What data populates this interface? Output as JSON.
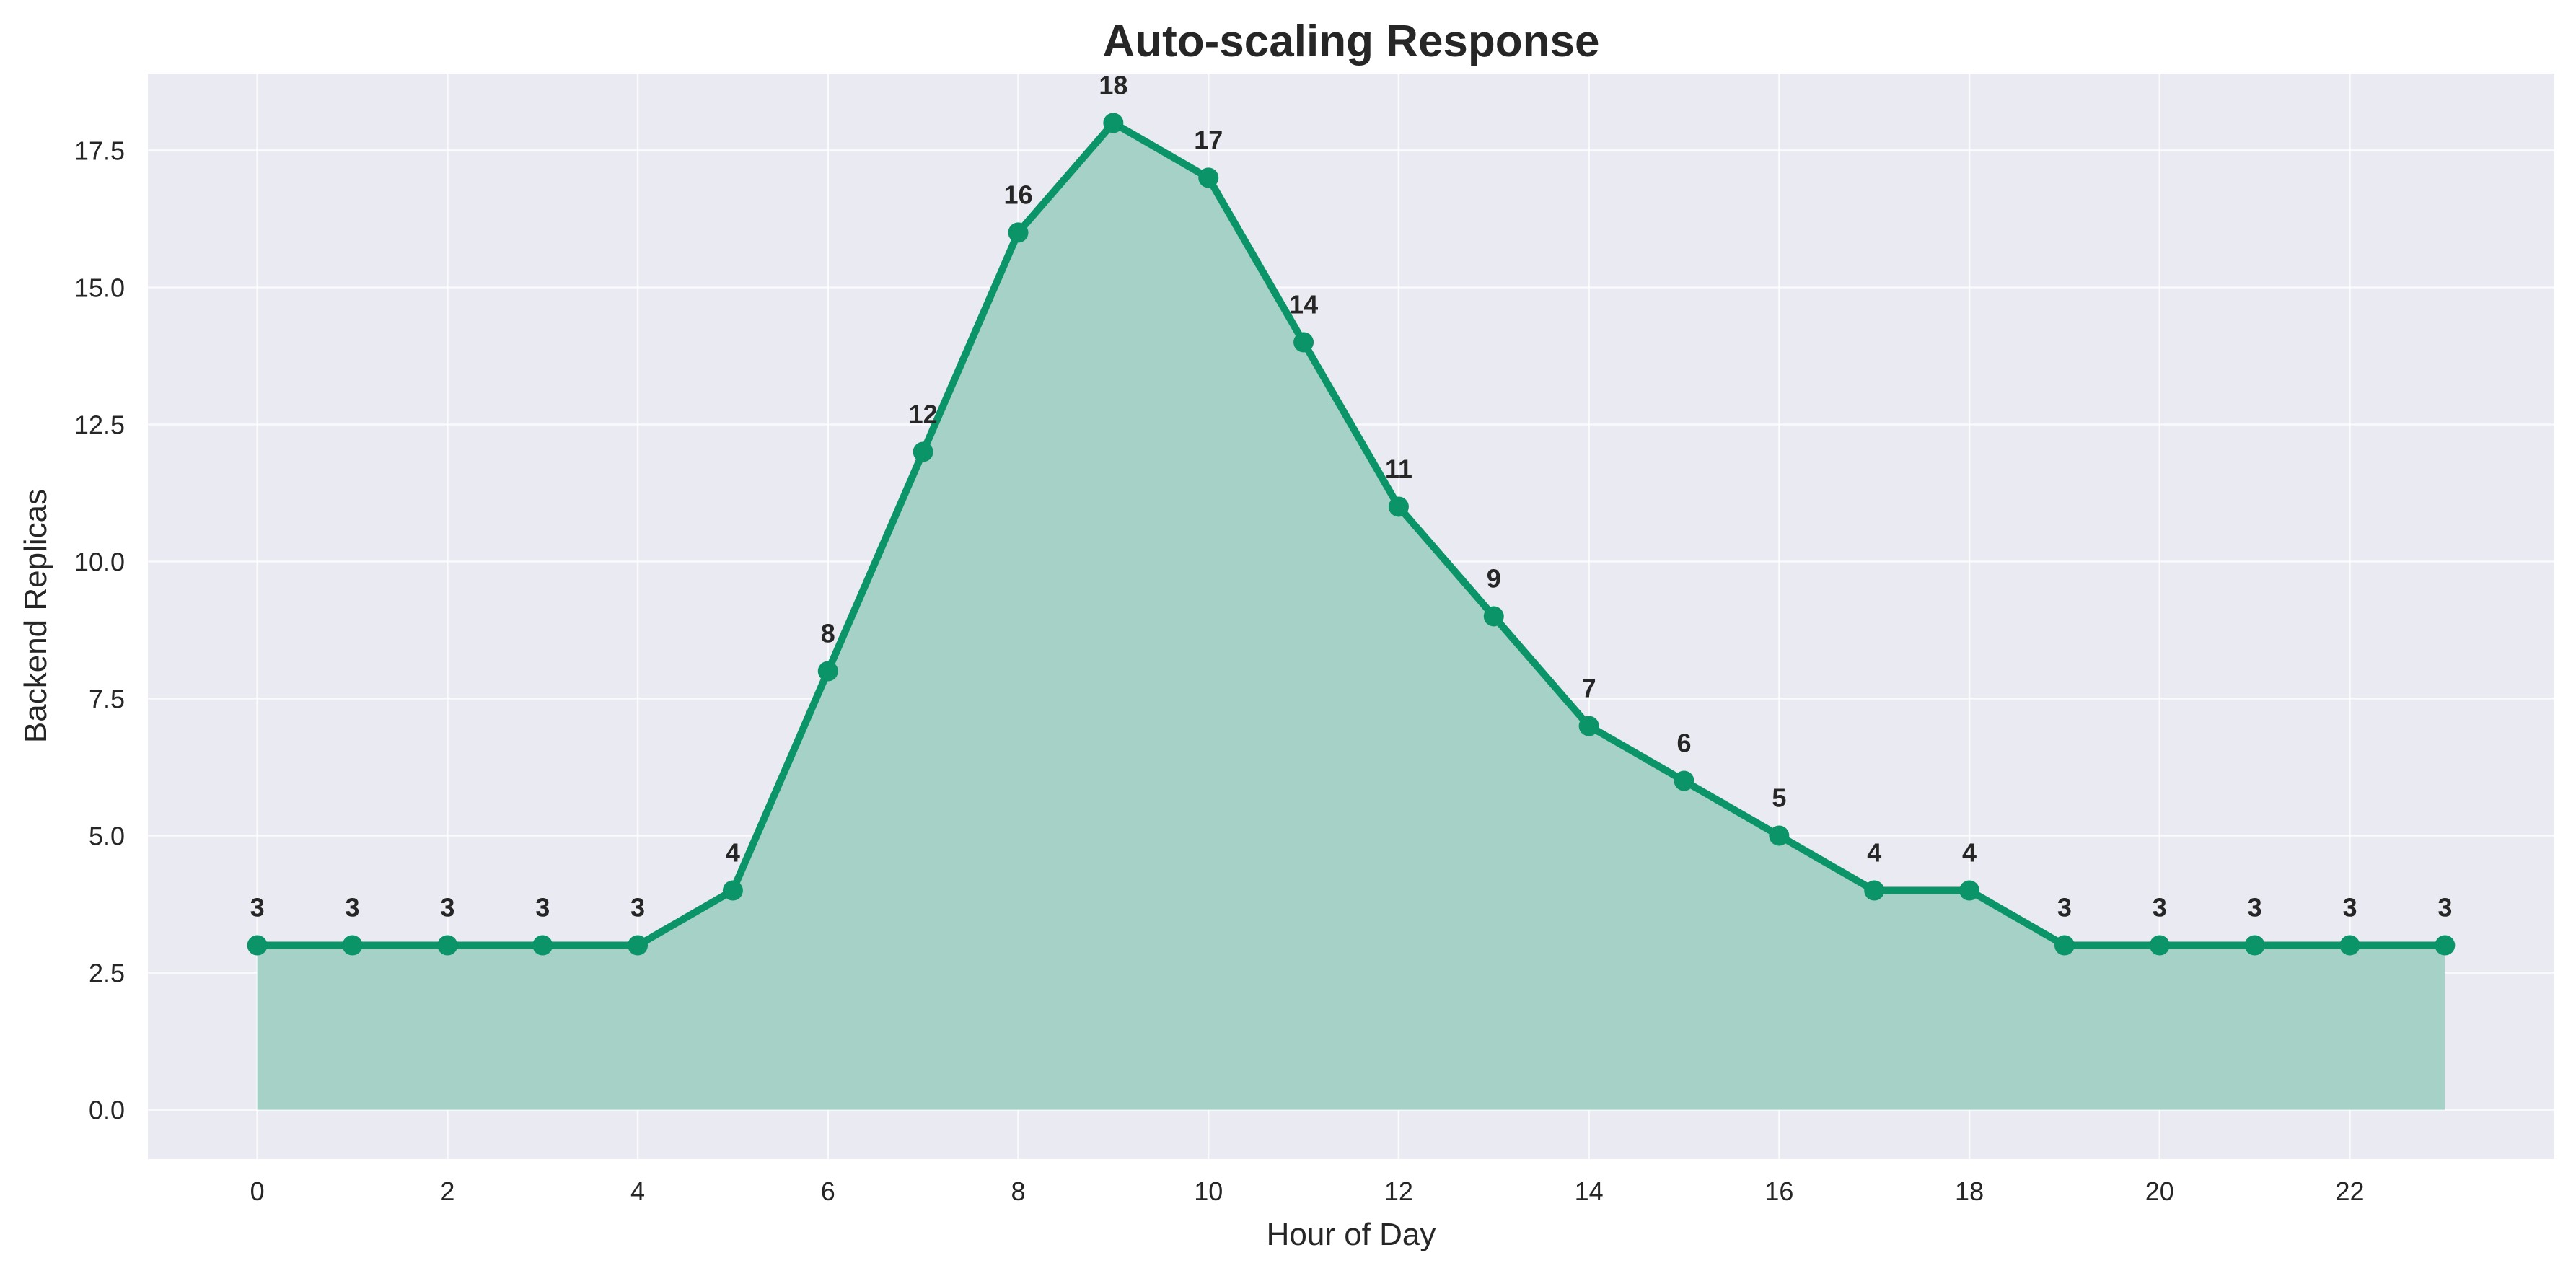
{
  "colors": {
    "plot_background": "#EAEAF2",
    "grid": "#FFFFFF",
    "line": "#0B9467",
    "fill": "#A6D1C7"
  },
  "chart_data": {
    "type": "area",
    "title": "Auto-scaling Response",
    "xlabel": "Hour of Day",
    "ylabel": "Backend Replicas",
    "x": [
      0,
      1,
      2,
      3,
      4,
      5,
      6,
      7,
      8,
      9,
      10,
      11,
      12,
      13,
      14,
      15,
      16,
      17,
      18,
      19,
      20,
      21,
      22,
      23
    ],
    "values": [
      3,
      3,
      3,
      3,
      3,
      4,
      8,
      12,
      16,
      18,
      17,
      14,
      11,
      9,
      7,
      6,
      5,
      4,
      4,
      3,
      3,
      3,
      3,
      3
    ],
    "data_labels": [
      "3",
      "3",
      "3",
      "3",
      "3",
      "4",
      "8",
      "12",
      "16",
      "18",
      "17",
      "14",
      "11",
      "9",
      "7",
      "6",
      "5",
      "4",
      "4",
      "3",
      "3",
      "3",
      "3",
      "3"
    ],
    "xlim": [
      -1.15,
      24.15
    ],
    "ylim": [
      -0.9,
      18.9
    ],
    "x_ticks": [
      0,
      2,
      4,
      6,
      8,
      10,
      12,
      14,
      16,
      18,
      20,
      22
    ],
    "x_tick_labels": [
      "0",
      "2",
      "4",
      "6",
      "8",
      "10",
      "12",
      "14",
      "16",
      "18",
      "20",
      "22"
    ],
    "y_ticks": [
      0,
      2.5,
      5,
      7.5,
      10,
      12.5,
      15,
      17.5
    ],
    "y_tick_labels": [
      "0.0",
      "2.5",
      "5.0",
      "7.5",
      "10.0",
      "12.5",
      "15.0",
      "17.5"
    ],
    "grid": true,
    "legend": false
  }
}
